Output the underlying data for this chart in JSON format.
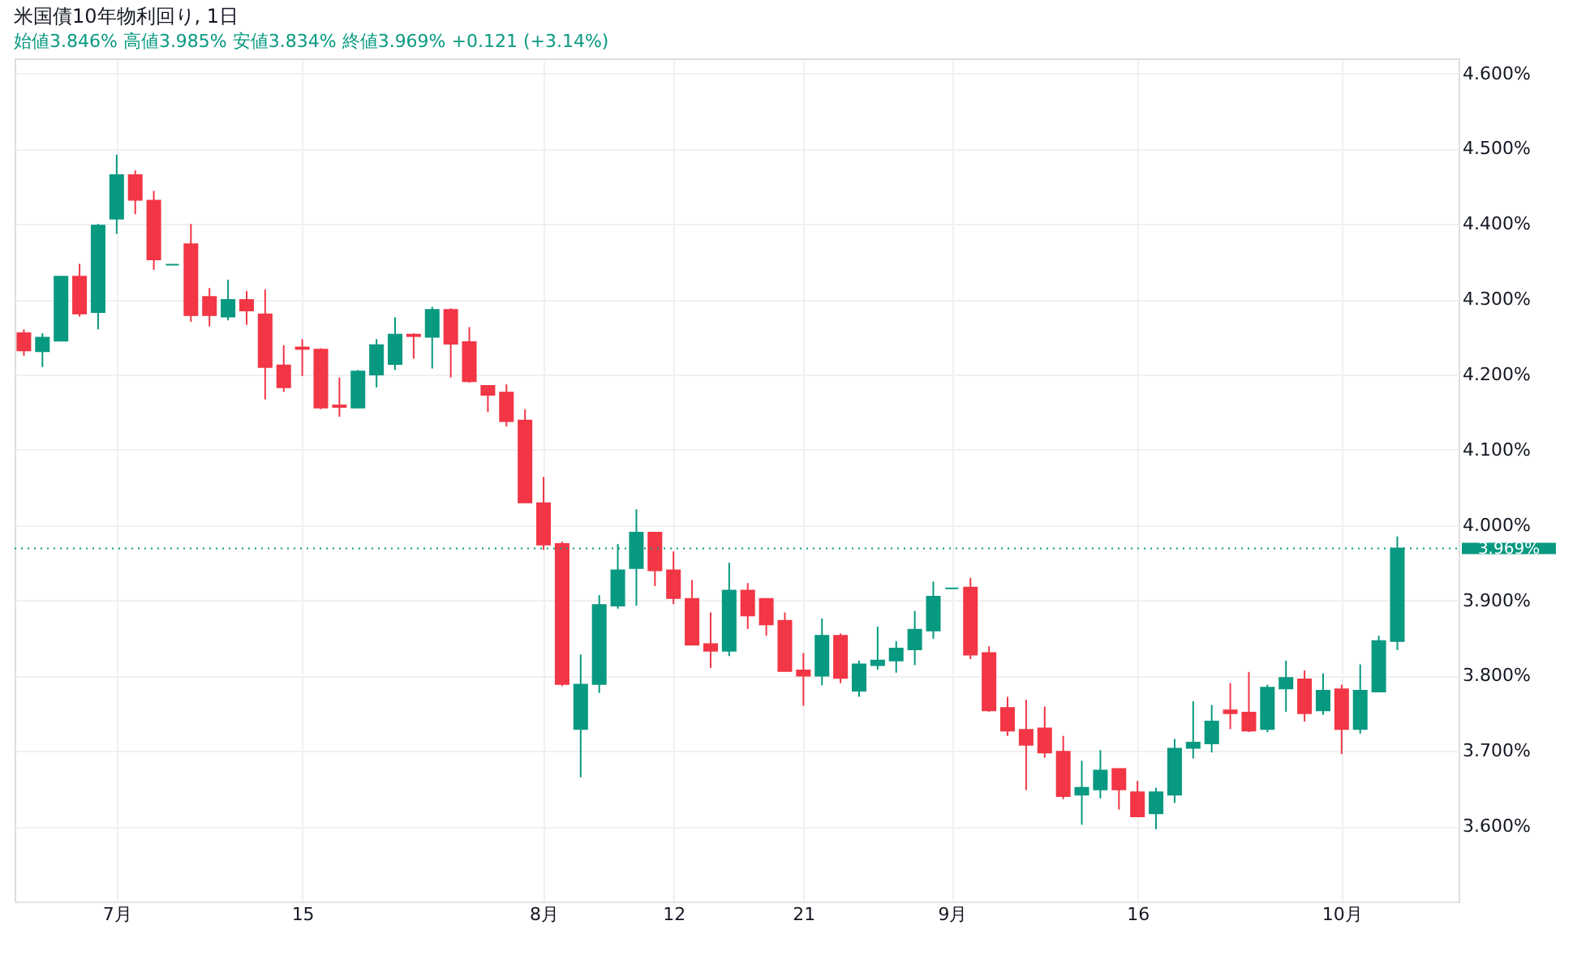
{
  "chart_data": {
    "type": "candlestick",
    "title": "米国債10年物利回り, 1日",
    "subtitle": "始値3.846%  高値3.985%  安値3.834%  終値3.969%  +0.121 (+3.14%)",
    "categories": [
      null,
      null,
      null,
      null,
      null,
      "7月",
      null,
      null,
      null,
      null,
      null,
      null,
      null,
      null,
      null,
      "15",
      null,
      null,
      null,
      null,
      null,
      null,
      null,
      null,
      null,
      null,
      null,
      null,
      "8月",
      null,
      null,
      null,
      null,
      null,
      null,
      "12",
      null,
      null,
      null,
      null,
      null,
      null,
      "21",
      null,
      null,
      null,
      null,
      null,
      null,
      null,
      "9月",
      null,
      null,
      null,
      null,
      null,
      null,
      null,
      null,
      null,
      "16",
      null,
      null,
      null,
      null,
      null,
      null,
      null,
      null,
      null,
      null,
      "10月",
      null,
      null,
      null
    ],
    "ohlc": [
      [
        4.255,
        4.26,
        4.225,
        4.232
      ],
      [
        4.231,
        4.255,
        4.21,
        4.249
      ],
      [
        4.245,
        4.33,
        4.245,
        4.33
      ],
      [
        4.33,
        4.347,
        4.277,
        4.281
      ],
      [
        4.283,
        4.4,
        4.26,
        4.398
      ],
      [
        4.407,
        4.492,
        4.387,
        4.465
      ],
      [
        4.465,
        4.471,
        4.413,
        4.432
      ],
      [
        4.431,
        4.444,
        4.339,
        4.353
      ],
      [
        4.346,
        4.346,
        4.346,
        4.346
      ],
      [
        4.373,
        4.4,
        4.27,
        4.279
      ],
      [
        4.303,
        4.315,
        4.264,
        4.279
      ],
      [
        4.277,
        4.326,
        4.272,
        4.299
      ],
      [
        4.299,
        4.311,
        4.266,
        4.285
      ],
      [
        4.28,
        4.313,
        4.167,
        4.21
      ],
      [
        4.212,
        4.239,
        4.177,
        4.183
      ],
      [
        4.236,
        4.247,
        4.198,
        4.234
      ],
      [
        4.233,
        4.235,
        4.154,
        4.156
      ],
      [
        4.159,
        4.196,
        4.144,
        4.157
      ],
      [
        4.156,
        4.206,
        4.156,
        4.204
      ],
      [
        4.2,
        4.247,
        4.183,
        4.239
      ],
      [
        4.214,
        4.276,
        4.206,
        4.253
      ],
      [
        4.253,
        4.255,
        4.221,
        4.251
      ],
      [
        4.25,
        4.29,
        4.208,
        4.286
      ],
      [
        4.286,
        4.288,
        4.196,
        4.241
      ],
      [
        4.243,
        4.263,
        4.189,
        4.191
      ],
      [
        4.185,
        4.185,
        4.15,
        4.173
      ],
      [
        4.176,
        4.187,
        4.131,
        4.138
      ],
      [
        4.139,
        4.154,
        4.03,
        4.03
      ],
      [
        4.029,
        4.064,
        3.967,
        3.974
      ],
      [
        3.975,
        3.978,
        3.786,
        3.789
      ],
      [
        3.729,
        3.828,
        3.665,
        3.788
      ],
      [
        3.789,
        3.907,
        3.777,
        3.894
      ],
      [
        3.893,
        3.975,
        3.889,
        3.94
      ],
      [
        3.943,
        4.021,
        3.893,
        3.99
      ],
      [
        3.99,
        3.99,
        3.919,
        3.94
      ],
      [
        3.94,
        3.965,
        3.895,
        3.903
      ],
      [
        3.902,
        3.927,
        3.841,
        3.841
      ],
      [
        3.842,
        3.884,
        3.81,
        3.833
      ],
      [
        3.833,
        3.95,
        3.826,
        3.913
      ],
      [
        3.913,
        3.923,
        3.862,
        3.88
      ],
      [
        3.902,
        3.902,
        3.853,
        3.868
      ],
      [
        3.873,
        3.884,
        3.806,
        3.806
      ],
      [
        3.807,
        3.83,
        3.76,
        3.8
      ],
      [
        3.8,
        3.876,
        3.787,
        3.853
      ],
      [
        3.853,
        3.856,
        3.79,
        3.797
      ],
      [
        3.78,
        3.82,
        3.772,
        3.815
      ],
      [
        3.814,
        3.865,
        3.808,
        3.82
      ],
      [
        3.82,
        3.846,
        3.804,
        3.836
      ],
      [
        3.835,
        3.886,
        3.814,
        3.861
      ],
      [
        3.86,
        3.925,
        3.849,
        3.905
      ],
      [
        3.916,
        3.916,
        3.916,
        3.916
      ],
      [
        3.917,
        3.93,
        3.822,
        3.828
      ],
      [
        3.83,
        3.839,
        3.752,
        3.754
      ],
      [
        3.757,
        3.772,
        3.72,
        3.727
      ],
      [
        3.728,
        3.768,
        3.648,
        3.708
      ],
      [
        3.73,
        3.759,
        3.691,
        3.698
      ],
      [
        3.699,
        3.72,
        3.636,
        3.64
      ],
      [
        3.642,
        3.687,
        3.602,
        3.651
      ],
      [
        3.649,
        3.701,
        3.637,
        3.674
      ],
      [
        3.676,
        3.676,
        3.622,
        3.649
      ],
      [
        3.645,
        3.66,
        3.613,
        3.613
      ],
      [
        3.617,
        3.651,
        3.596,
        3.645
      ],
      [
        3.642,
        3.716,
        3.631,
        3.703
      ],
      [
        3.704,
        3.766,
        3.69,
        3.711
      ],
      [
        3.71,
        3.761,
        3.698,
        3.739
      ],
      [
        3.754,
        3.79,
        3.729,
        3.75
      ],
      [
        3.751,
        3.805,
        3.725,
        3.727
      ],
      [
        3.729,
        3.788,
        3.725,
        3.784
      ],
      [
        3.783,
        3.82,
        3.752,
        3.797
      ],
      [
        3.795,
        3.807,
        3.739,
        3.75
      ],
      [
        3.754,
        3.803,
        3.748,
        3.78
      ],
      [
        3.782,
        3.788,
        3.696,
        3.729
      ],
      [
        3.729,
        3.815,
        3.723,
        3.78
      ],
      [
        3.779,
        3.853,
        3.779,
        3.846
      ],
      [
        3.846,
        3.985,
        3.834,
        3.969
      ]
    ],
    "colors": [
      "#f23645",
      "#089981",
      "#089981",
      "#f23645",
      "#089981",
      "#089981",
      "#f23645",
      "#f23645",
      "#089981",
      "#f23645",
      "#f23645",
      "#089981",
      "#f23645",
      "#f23645",
      "#f23645",
      "#f23645",
      "#f23645",
      "#f23645",
      "#089981",
      "#089981",
      "#089981",
      "#f23645",
      "#089981",
      "#f23645",
      "#f23645",
      "#f23645",
      "#f23645",
      "#f23645",
      "#f23645",
      "#f23645",
      "#089981",
      "#089981",
      "#089981",
      "#089981",
      "#f23645",
      "#f23645",
      "#f23645",
      "#f23645",
      "#089981",
      "#f23645",
      "#f23645",
      "#f23645",
      "#f23645",
      "#089981",
      "#f23645",
      "#089981",
      "#089981",
      "#089981",
      "#089981",
      "#089981",
      "#089981",
      "#f23645",
      "#f23645",
      "#f23645",
      "#f23645",
      "#f23645",
      "#f23645",
      "#089981",
      "#089981",
      "#f23645",
      "#f23645",
      "#089981",
      "#089981",
      "#089981",
      "#089981",
      "#f23645",
      "#f23645",
      "#089981",
      "#089981",
      "#f23645",
      "#089981",
      "#f23645",
      "#089981",
      "#089981",
      "#089981"
    ],
    "ylim": [
      3.5,
      4.62
    ],
    "yticks": [
      {
        "value": 3.6,
        "label": "3.600%"
      },
      {
        "value": 3.7,
        "label": "3.700%"
      },
      {
        "value": 3.8,
        "label": "3.800%"
      },
      {
        "value": 3.9,
        "label": "3.900%"
      },
      {
        "value": 4.0,
        "label": "4.000%"
      },
      {
        "value": 4.1,
        "label": "4.100%"
      },
      {
        "value": 4.2,
        "label": "4.200%"
      },
      {
        "value": 4.3,
        "label": "4.300%"
      },
      {
        "value": 4.4,
        "label": "4.400%"
      },
      {
        "value": 4.5,
        "label": "4.500%"
      },
      {
        "value": 4.6,
        "label": "4.600%"
      }
    ],
    "ref_lines": [
      {
        "axis": "y",
        "value": 3.969,
        "label": "3.969%",
        "color": "#089981",
        "line_style": "dotted"
      }
    ],
    "grid": true
  }
}
